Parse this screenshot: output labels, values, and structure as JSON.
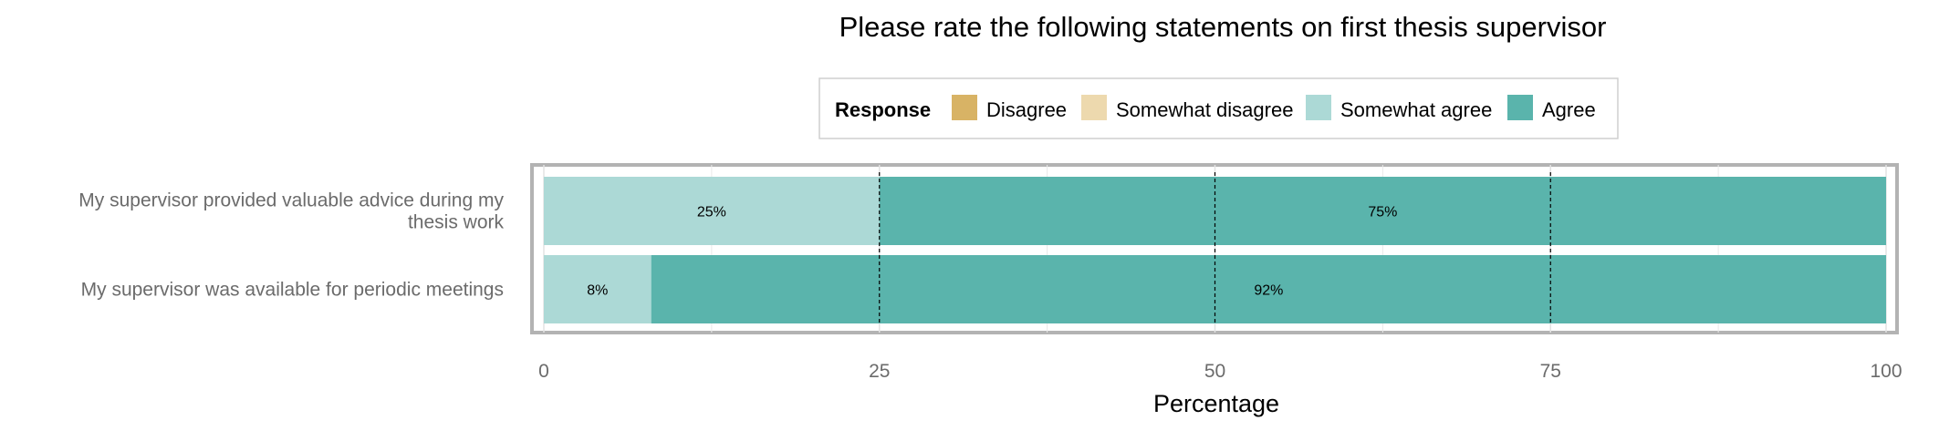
{
  "chart_data": {
    "type": "bar",
    "orientation": "horizontal",
    "stacked": true,
    "title": "Please rate the following statements on first thesis supervisor",
    "xlabel": "Percentage",
    "ylabel": "",
    "xlim": [
      0,
      100
    ],
    "x_ticks": [
      0,
      25,
      50,
      75,
      100
    ],
    "reference_lines": [
      25,
      50,
      75
    ],
    "legend": {
      "title": "Response",
      "position": "top",
      "entries": [
        {
          "name": "Disagree",
          "color": "#D8B365"
        },
        {
          "name": "Somewhat disagree",
          "color": "#EDD9AE"
        },
        {
          "name": "Somewhat agree",
          "color": "#ACD9D6"
        },
        {
          "name": "Agree",
          "color": "#5AB4AC"
        }
      ]
    },
    "categories": [
      [
        "My supervisor provided valuable advice during my",
        "thesis work"
      ],
      [
        "My supervisor was available for periodic meetings"
      ]
    ],
    "series": [
      {
        "name": "Somewhat agree",
        "color": "#ACD9D6",
        "values": [
          25,
          8
        ],
        "labels": [
          "25%",
          "8%"
        ]
      },
      {
        "name": "Agree",
        "color": "#5AB4AC",
        "values": [
          75,
          92
        ],
        "labels": [
          "75%",
          "92%"
        ]
      }
    ]
  }
}
